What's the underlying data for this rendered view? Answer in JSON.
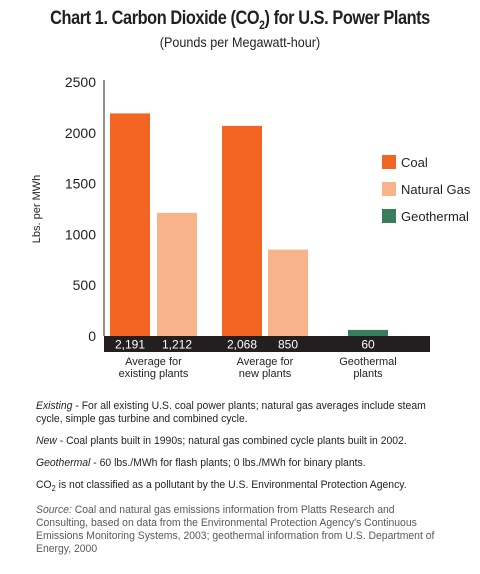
{
  "chart_data": {
    "type": "bar",
    "title_main": "Chart 1. Carbon Dioxide (CO",
    "title_sub": "2",
    "title_end": ") for U.S. Power Plants",
    "subtitle": "(Pounds per Megawatt-hour)",
    "ylabel": "Lbs. per MWh",
    "ylim": [
      0,
      2500
    ],
    "yticks": [
      "2500",
      "2000",
      "1500",
      "1000",
      "500",
      "0"
    ],
    "groups": [
      {
        "label_lines": [
          "Average for",
          "existing plants"
        ],
        "bars": [
          {
            "series": "Coal",
            "value": 2191,
            "label": "2,191"
          },
          {
            "series": "Natural Gas",
            "value": 1212,
            "label": "1,212"
          }
        ]
      },
      {
        "label_lines": [
          "Average for",
          "new plants"
        ],
        "bars": [
          {
            "series": "Coal",
            "value": 2068,
            "label": "2,068"
          },
          {
            "series": "Natural Gas",
            "value": 850,
            "label": "850"
          }
        ]
      },
      {
        "label_lines": [
          "Geothermal",
          "plants"
        ],
        "bars": [
          {
            "series": "Geothermal",
            "value": 60,
            "label": "60"
          }
        ]
      }
    ],
    "series": [
      {
        "name": "Coal",
        "color": "#f26522"
      },
      {
        "name": "Natural Gas",
        "color": "#f9b38b"
      },
      {
        "name": "Geothermal",
        "color": "#3a7d5c"
      }
    ],
    "legend_placement": "right",
    "grid": false
  },
  "notes": {
    "existing_term": "Existing",
    "existing_text": " - For all existing U.S. coal power plants; natural gas averages include steam cycle, simple gas turbine and combined cycle.",
    "new_term": "New",
    "new_text": " - Coal plants built in 1990s; natural gas combined cycle plants built in 2002.",
    "geo_term": "Geothermal",
    "geo_text": " - 60 lbs./MWh for flash plants; 0 lbs./MWh for binary plants.",
    "co2_main": "CO",
    "co2_sub": "2",
    "co2_text": " is not classified as a pollutant by the U.S. Environmental Protection Agency.",
    "source_term": "Source:",
    "source_text": " Coal and natural gas emissions information from Platts Research and Consulting, based on data from the Environmental Protection Agency's Continuous Emissions Monitoring Systems, 2003; geothermal information from U.S. Department of Energy, 2000"
  }
}
